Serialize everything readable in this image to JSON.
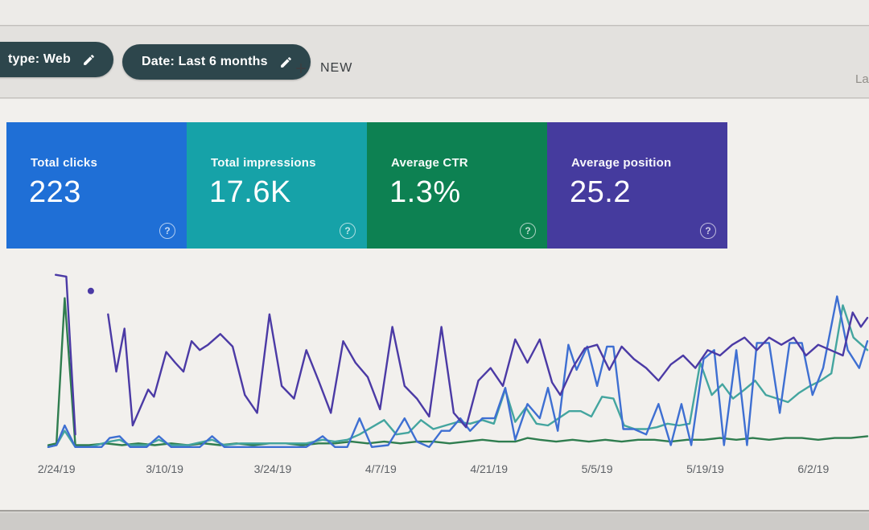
{
  "header": {
    "filter_chips": [
      {
        "label": "type: Web",
        "icon": "pencil-icon"
      },
      {
        "label": "Date: Last 6 months",
        "icon": "pencil-icon"
      }
    ],
    "new_button": {
      "label": "NEW",
      "icon": "plus-icon"
    },
    "partial_right_text": "La"
  },
  "metric_cards": [
    {
      "title": "Total clicks",
      "value": "223",
      "color": "#1f6fd6",
      "help_icon": "?"
    },
    {
      "title": "Total impressions",
      "value": "17.6K",
      "color": "#16a2a8",
      "help_icon": "?"
    },
    {
      "title": "Average CTR",
      "value": "1.3%",
      "color": "#0d8152",
      "help_icon": "?"
    },
    {
      "title": "Average position",
      "value": "25.2",
      "color": "#453b9e",
      "help_icon": "?"
    }
  ],
  "chart_data": {
    "type": "line",
    "title": "",
    "xlabel": "",
    "ylabel": "",
    "grid": false,
    "legend_position": "none (series colors match metric card colors)",
    "x_tick_labels": [
      "2/24/19",
      "3/10/19",
      "3/24/19",
      "4/7/19",
      "4/21/19",
      "5/5/19",
      "5/19/19",
      "6/2/19"
    ],
    "x_tick_positions_pct": [
      1.0,
      14.2,
      27.4,
      40.6,
      53.8,
      67.0,
      80.2,
      93.4
    ],
    "y_axis_note": "no visible y axis; point values are estimated % of plot height above the baseline (0=bottom, 100=top)",
    "series": [
      {
        "name": "Average CTR",
        "color": "#2f7d4f",
        "points": [
          [
            0,
            2
          ],
          [
            1,
            3
          ],
          [
            2,
            84
          ],
          [
            3.3,
            2
          ],
          [
            5,
            2
          ],
          [
            7,
            3
          ],
          [
            9,
            2
          ],
          [
            11,
            3
          ],
          [
            13,
            2
          ],
          [
            15,
            3
          ],
          [
            17,
            2
          ],
          [
            19,
            3
          ],
          [
            21,
            2
          ],
          [
            23,
            3
          ],
          [
            25,
            2
          ],
          [
            27,
            3
          ],
          [
            29,
            3
          ],
          [
            31,
            2
          ],
          [
            33,
            3
          ],
          [
            35,
            3
          ],
          [
            37,
            4
          ],
          [
            39,
            3
          ],
          [
            41,
            4
          ],
          [
            43,
            3
          ],
          [
            45,
            4
          ],
          [
            47,
            4
          ],
          [
            49,
            3
          ],
          [
            51,
            4
          ],
          [
            53,
            5
          ],
          [
            55,
            4
          ],
          [
            57,
            4
          ],
          [
            58.5,
            6
          ],
          [
            60,
            5
          ],
          [
            62,
            4
          ],
          [
            64,
            5
          ],
          [
            66,
            4
          ],
          [
            68,
            5
          ],
          [
            70,
            4
          ],
          [
            72,
            5
          ],
          [
            74,
            5
          ],
          [
            76,
            4
          ],
          [
            78,
            5
          ],
          [
            80,
            5
          ],
          [
            82,
            6
          ],
          [
            84,
            5
          ],
          [
            86,
            6
          ],
          [
            88,
            5
          ],
          [
            90,
            6
          ],
          [
            92,
            6
          ],
          [
            94,
            5
          ],
          [
            96,
            6
          ],
          [
            98,
            6
          ],
          [
            100,
            7
          ]
        ]
      },
      {
        "name": "Total impressions",
        "color": "#44a59f",
        "points": [
          [
            0,
            1
          ],
          [
            1,
            2
          ],
          [
            2,
            10
          ],
          [
            3.3,
            1
          ],
          [
            5,
            1
          ],
          [
            7.5,
            4
          ],
          [
            8.7,
            5
          ],
          [
            10,
            2
          ],
          [
            12,
            2
          ],
          [
            13.5,
            5
          ],
          [
            15,
            2
          ],
          [
            17,
            2
          ],
          [
            20,
            5
          ],
          [
            21.5,
            2
          ],
          [
            23.5,
            3
          ],
          [
            25.5,
            3
          ],
          [
            27.5,
            3
          ],
          [
            29.5,
            3
          ],
          [
            31.5,
            3
          ],
          [
            33.5,
            5
          ],
          [
            35,
            4
          ],
          [
            36.5,
            5
          ],
          [
            38,
            8
          ],
          [
            39.5,
            12
          ],
          [
            41,
            16
          ],
          [
            42.5,
            8
          ],
          [
            44,
            9
          ],
          [
            45.5,
            16
          ],
          [
            47,
            11
          ],
          [
            48.5,
            13
          ],
          [
            50,
            15
          ],
          [
            51.5,
            14
          ],
          [
            53,
            16
          ],
          [
            54.4,
            14
          ],
          [
            55.8,
            33
          ],
          [
            57,
            15
          ],
          [
            58.3,
            23
          ],
          [
            59.6,
            14
          ],
          [
            61,
            13
          ],
          [
            62.3,
            17
          ],
          [
            63.6,
            21
          ],
          [
            65,
            21
          ],
          [
            66.3,
            18
          ],
          [
            67.6,
            29
          ],
          [
            69,
            28
          ],
          [
            70.3,
            13
          ],
          [
            71.6,
            11
          ],
          [
            73,
            11
          ],
          [
            74.3,
            12
          ],
          [
            75.6,
            14
          ],
          [
            77,
            13
          ],
          [
            78.3,
            14
          ],
          [
            79.6,
            48
          ],
          [
            81,
            30
          ],
          [
            82.3,
            36
          ],
          [
            83.6,
            28
          ],
          [
            85,
            33
          ],
          [
            86.3,
            38
          ],
          [
            87.6,
            30
          ],
          [
            89,
            28
          ],
          [
            90.3,
            26
          ],
          [
            91.6,
            31
          ],
          [
            93,
            35
          ],
          [
            94.3,
            38
          ],
          [
            95.6,
            42
          ],
          [
            97,
            80
          ],
          [
            98.3,
            62
          ],
          [
            100,
            55
          ]
        ]
      },
      {
        "name": "Total clicks",
        "color": "#3e6fd2",
        "points": [
          [
            0,
            1
          ],
          [
            1,
            2
          ],
          [
            2,
            13
          ],
          [
            3.3,
            1
          ],
          [
            5,
            1
          ],
          [
            6.5,
            1
          ],
          [
            7.5,
            6
          ],
          [
            8.7,
            7
          ],
          [
            10,
            1
          ],
          [
            12,
            1
          ],
          [
            13.5,
            7
          ],
          [
            15,
            1
          ],
          [
            17,
            1
          ],
          [
            18.5,
            1
          ],
          [
            20,
            7
          ],
          [
            21.5,
            1
          ],
          [
            23.5,
            1
          ],
          [
            25.5,
            1
          ],
          [
            27.5,
            1
          ],
          [
            29.5,
            1
          ],
          [
            31.5,
            1
          ],
          [
            33.5,
            7
          ],
          [
            35,
            1
          ],
          [
            36.5,
            1
          ],
          [
            38,
            17
          ],
          [
            39.5,
            1
          ],
          [
            41.5,
            2
          ],
          [
            43.5,
            17
          ],
          [
            45,
            4
          ],
          [
            46.5,
            1
          ],
          [
            48,
            10
          ],
          [
            49,
            10
          ],
          [
            50.3,
            17
          ],
          [
            51.5,
            10
          ],
          [
            53,
            17
          ],
          [
            54.5,
            17
          ],
          [
            55.8,
            34
          ],
          [
            57,
            5
          ],
          [
            58.5,
            25
          ],
          [
            60,
            17
          ],
          [
            61,
            34
          ],
          [
            62.2,
            10
          ],
          [
            63.5,
            58
          ],
          [
            64.5,
            44
          ],
          [
            65.8,
            57
          ],
          [
            67,
            35
          ],
          [
            68.2,
            57
          ],
          [
            69,
            57
          ],
          [
            70.2,
            11
          ],
          [
            71.5,
            11
          ],
          [
            73,
            8
          ],
          [
            74.5,
            25
          ],
          [
            76,
            2
          ],
          [
            77.3,
            25
          ],
          [
            78.5,
            2
          ],
          [
            80,
            50
          ],
          [
            81.3,
            55
          ],
          [
            82.5,
            2
          ],
          [
            84,
            55
          ],
          [
            85.3,
            2
          ],
          [
            86.5,
            59
          ],
          [
            88,
            59
          ],
          [
            89.3,
            20
          ],
          [
            90.5,
            59
          ],
          [
            92,
            59
          ],
          [
            93.3,
            30
          ],
          [
            94.6,
            45
          ],
          [
            96.3,
            85
          ],
          [
            97.6,
            55
          ],
          [
            99,
            45
          ],
          [
            100,
            60
          ]
        ]
      },
      {
        "name": "Average position",
        "color": "#4b3aa5",
        "segments": [
          [
            [
              0.9,
              97
            ],
            [
              2.2,
              96
            ],
            [
              3.3,
              8
            ]
          ],
          [
            [
              7.3,
              75
            ],
            [
              8.3,
              43
            ],
            [
              9.3,
              67
            ],
            [
              10.3,
              13
            ],
            [
              12.2,
              33
            ],
            [
              12.9,
              29
            ],
            [
              14.4,
              54
            ],
            [
              15.5,
              48
            ],
            [
              16.5,
              43
            ],
            [
              17.5,
              60
            ],
            [
              18.5,
              55
            ],
            [
              19.5,
              58
            ],
            [
              21,
              64
            ],
            [
              22.5,
              57
            ],
            [
              24,
              30
            ],
            [
              25.5,
              20
            ],
            [
              27,
              75
            ],
            [
              28.5,
              35
            ],
            [
              30,
              28
            ],
            [
              31.5,
              55
            ],
            [
              33,
              38
            ],
            [
              34.5,
              20
            ],
            [
              36,
              60
            ],
            [
              37.5,
              48
            ],
            [
              39,
              40
            ],
            [
              40.5,
              22
            ],
            [
              42,
              68
            ],
            [
              43.5,
              35
            ],
            [
              45,
              28
            ],
            [
              46.5,
              18
            ],
            [
              48,
              68
            ],
            [
              49.5,
              20
            ],
            [
              51,
              12
            ],
            [
              52.5,
              38
            ],
            [
              54,
              45
            ],
            [
              55.5,
              35
            ],
            [
              57,
              61
            ],
            [
              58.5,
              48
            ],
            [
              60,
              61
            ],
            [
              61.5,
              37
            ],
            [
              62.5,
              30
            ],
            [
              64,
              45
            ],
            [
              65.5,
              56
            ],
            [
              67,
              58
            ],
            [
              68.5,
              44
            ],
            [
              70,
              57
            ],
            [
              71.5,
              50
            ],
            [
              73,
              45
            ],
            [
              74.5,
              38
            ],
            [
              76,
              47
            ],
            [
              77.5,
              52
            ],
            [
              79,
              45
            ],
            [
              80.5,
              55
            ],
            [
              82,
              52
            ],
            [
              83.5,
              58
            ],
            [
              85,
              62
            ],
            [
              86.5,
              55
            ],
            [
              88,
              62
            ],
            [
              89.5,
              58
            ],
            [
              91,
              62
            ],
            [
              92.5,
              52
            ],
            [
              94,
              58
            ],
            [
              95.5,
              55
            ],
            [
              97,
              52
            ],
            [
              98.2,
              76
            ],
            [
              99.2,
              68
            ],
            [
              100,
              73
            ]
          ]
        ],
        "isolated_dot": [
          5.2,
          88
        ]
      }
    ]
  }
}
